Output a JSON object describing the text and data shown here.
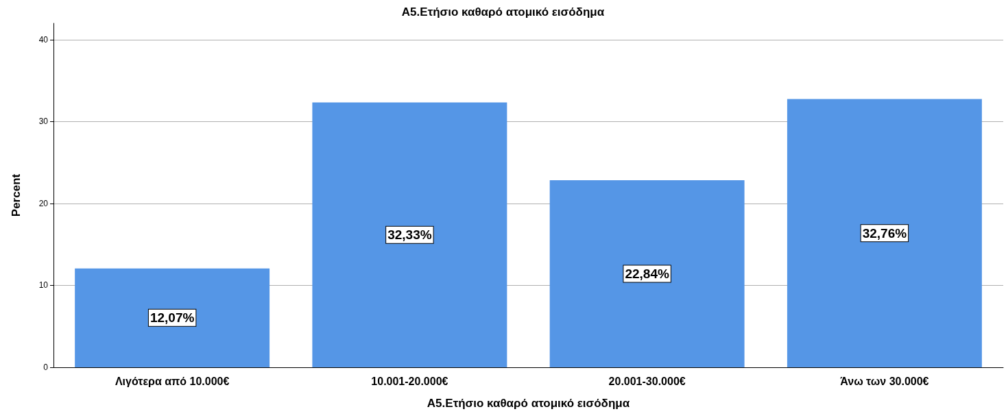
{
  "chart_data": {
    "type": "bar",
    "title": "A5.Ετήσιο καθαρό ατομικό εισόδημα",
    "xlabel": "A5.Ετήσιο καθαρό ατομικό εισόδημα",
    "ylabel": "Percent",
    "categories": [
      "Λιγότερα από 10.000€",
      "10.001-20.000€",
      "20.001-30.000€",
      "Άνω των 30.000€"
    ],
    "values": [
      12.07,
      32.33,
      22.84,
      32.76
    ],
    "value_labels": [
      "12,07%",
      "32,33%",
      "22,84%",
      "32,76%"
    ],
    "color": "#5596e6",
    "ylim": [
      0,
      42
    ],
    "yticks": [
      0,
      10,
      20,
      30,
      40
    ],
    "grid": "y"
  }
}
